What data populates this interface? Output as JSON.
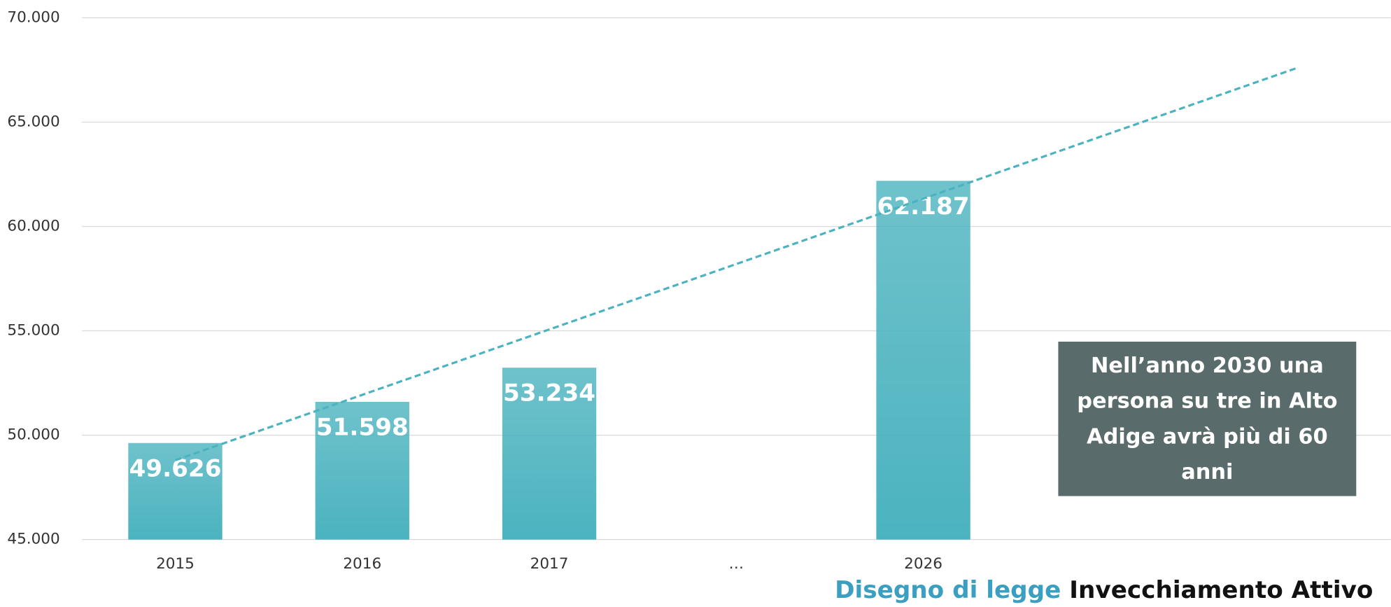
{
  "chart_data": {
    "type": "bar",
    "categories": [
      "2015",
      "2016",
      "2017",
      "…",
      "2026",
      null,
      null
    ],
    "values": [
      49626,
      51598,
      53234,
      null,
      62187,
      null,
      null
    ],
    "value_labels": [
      "49.626",
      "51.598",
      "53.234",
      null,
      "62.187",
      null,
      null
    ],
    "color": "#4bb3bf",
    "ylim": [
      45000,
      70000
    ],
    "yticks": [
      {
        "value": 45000,
        "label": "45.000"
      },
      {
        "value": 50000,
        "label": "50.000"
      },
      {
        "value": 55000,
        "label": "55.000"
      },
      {
        "value": 60000,
        "label": "60.000"
      },
      {
        "value": 65000,
        "label": "65.000"
      },
      {
        "value": 70000,
        "label": "70.000"
      }
    ],
    "grid": true,
    "trendline": {
      "start": 48800,
      "end": 67600,
      "color": "#4bb3bf",
      "dashed": true
    },
    "annotation": {
      "lines": [
        "Nell’anno 2030 una",
        "persona su tre in Alto",
        "Adige avrà più di 60",
        "anni"
      ],
      "background": "#5a6b6b"
    },
    "footer": {
      "highlight": "Disegno di legge",
      "text": "Invecchiamento Attivo",
      "highlight_color": "#3a9fc0"
    }
  }
}
